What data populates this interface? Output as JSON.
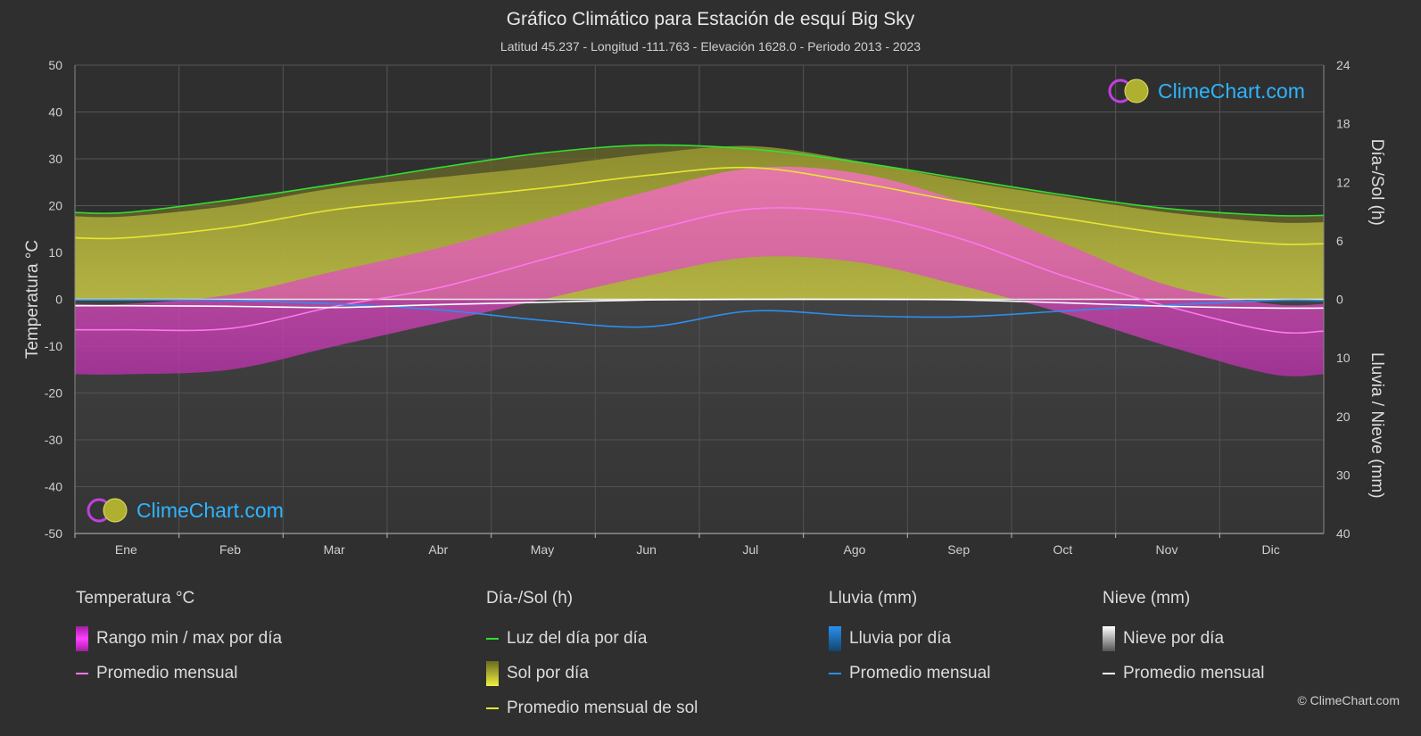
{
  "title": "Gráfico Climático para Estación de esquí Big Sky",
  "subtitle": "Latitud 45.237 - Longitud -111.763 - Elevación 1628.0 - Periodo 2013 - 2023",
  "logo_text": "ClimeChart.com",
  "copyright": "© ClimeChart.com",
  "colors": {
    "background": "#2f2f2f",
    "daylight": "#33dd33",
    "sunshine_avg": "#e6e633",
    "temp_avg": "#ff77ee",
    "rain_avg": "#2a8ff0",
    "snow_avg": "#ffffff",
    "temp_range": "#e040c8",
    "sun_fill": "#b8b83a"
  },
  "chart_data": {
    "type": "line",
    "months": [
      "Ene",
      "Feb",
      "Mar",
      "Abr",
      "May",
      "Jun",
      "Jul",
      "Ago",
      "Sep",
      "Oct",
      "Nov",
      "Dic"
    ],
    "left_axis": {
      "label": "Temperatura °C",
      "ticks": [
        50,
        40,
        30,
        20,
        10,
        0,
        -10,
        -20,
        -30,
        -40,
        -50
      ],
      "range": [
        -50,
        50
      ]
    },
    "right_axis_top": {
      "label": "Día-/Sol (h)",
      "ticks": [
        24,
        18,
        12,
        6,
        0
      ],
      "range": [
        0,
        24
      ]
    },
    "right_axis_bottom": {
      "label": "Lluvia / Nieve (mm)",
      "ticks": [
        0,
        10,
        20,
        30,
        40
      ],
      "range": [
        0,
        40
      ]
    },
    "series": [
      {
        "name": "Luz del día por día",
        "unit": "h",
        "values": [
          8.9,
          10.2,
          11.8,
          13.5,
          15.0,
          15.8,
          15.4,
          14.1,
          12.4,
          10.7,
          9.3,
          8.6
        ]
      },
      {
        "name": "Promedio mensual de sol",
        "unit": "h",
        "values": [
          6.3,
          7.4,
          9.2,
          10.3,
          11.4,
          12.7,
          13.5,
          12.0,
          10.0,
          8.3,
          6.7,
          5.7
        ]
      },
      {
        "name": "Temperatura promedio mensual",
        "unit": "°C",
        "values": [
          -6.5,
          -6.2,
          -1.5,
          2.5,
          8.5,
          14.5,
          19.3,
          18.3,
          13.0,
          5.0,
          -1.5,
          -6.8
        ]
      },
      {
        "name": "Lluvia promedio mensual",
        "unit": "mm",
        "values": [
          0.1,
          0.2,
          0.8,
          1.8,
          3.6,
          4.7,
          2.0,
          2.8,
          3.0,
          2.0,
          1.0,
          0.2
        ]
      },
      {
        "name": "Nieve promedio mensual",
        "unit": "mm",
        "values": [
          1.1,
          1.2,
          1.4,
          0.9,
          0.5,
          0.1,
          0.0,
          0.0,
          0.1,
          0.6,
          1.2,
          1.5
        ]
      }
    ],
    "temp_daily_range": {
      "max": [
        -1,
        1,
        6,
        11,
        17,
        23,
        28,
        27,
        21,
        12,
        3,
        -1
      ],
      "min": [
        -16,
        -15,
        -10,
        -5,
        0,
        5,
        9,
        8,
        3,
        -3,
        -10,
        -16
      ]
    }
  },
  "legend": {
    "temp": {
      "title": "Temperatura °C",
      "items": [
        "Rango min / max por día",
        "Promedio mensual"
      ]
    },
    "sun": {
      "title": "Día-/Sol (h)",
      "items": [
        "Luz del día por día",
        "Sol por día",
        "Promedio mensual de sol"
      ]
    },
    "rain": {
      "title": "Lluvia (mm)",
      "items": [
        "Lluvia por día",
        "Promedio mensual"
      ]
    },
    "snow": {
      "title": "Nieve (mm)",
      "items": [
        "Nieve por día",
        "Promedio mensual"
      ]
    }
  }
}
